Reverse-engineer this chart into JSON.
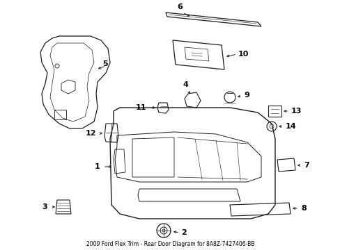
{
  "title": "2009 Ford Flex Trim - Rear Door Diagram for 8A8Z-7427406-BB",
  "bg_color": "#ffffff",
  "line_color": "#1a1a1a",
  "text_color": "#000000",
  "fig_width": 4.89,
  "fig_height": 3.6,
  "dpi": 100
}
